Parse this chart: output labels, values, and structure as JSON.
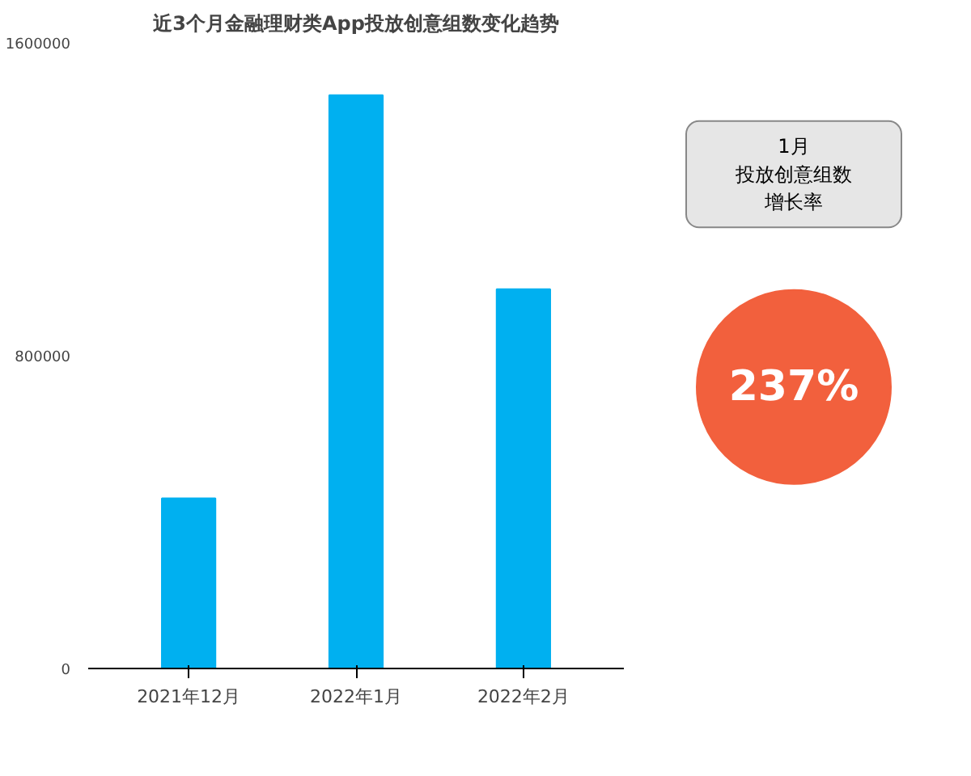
{
  "chart_data": {
    "type": "bar",
    "title": "近3个月金融理财类App投放创意组数变化趋势",
    "categories": [
      "2021年12月",
      "2022年1月",
      "2022年2月"
    ],
    "values": [
      435000,
      1466000,
      970000
    ],
    "color": "#00b0f0",
    "ylim": [
      0,
      1600000
    ],
    "yticks": [
      0,
      800000,
      1600000
    ],
    "grid": false,
    "annotations": [
      "1月",
      "投放创意组数",
      "增长率",
      "237%"
    ]
  }
}
